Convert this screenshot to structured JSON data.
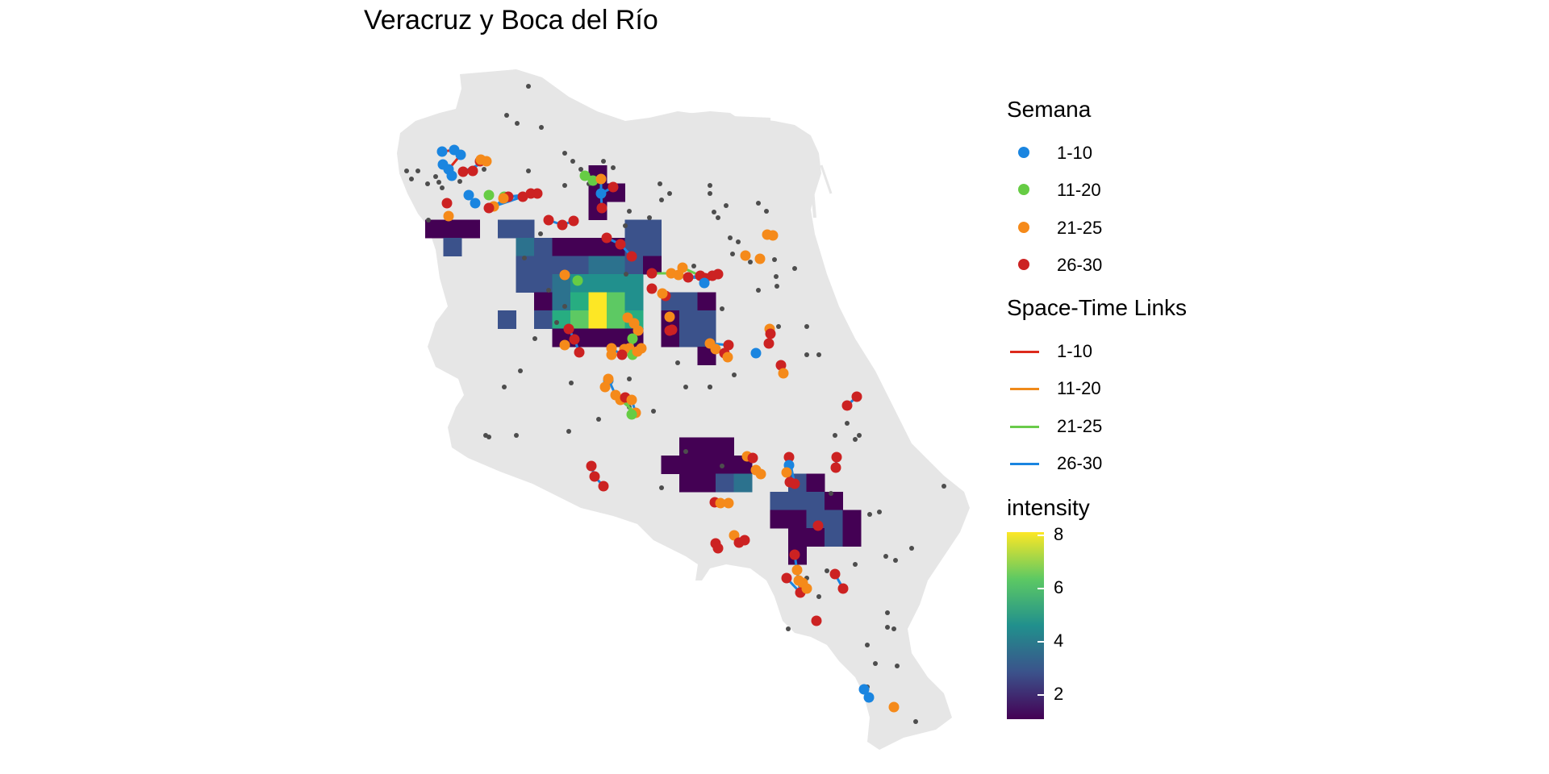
{
  "title": "Veracruz y Boca del Río",
  "colors": {
    "land": "#e6e6e6",
    "week_1_10": "#1a85e0",
    "week_11_20": "#66cc44",
    "week_21_25": "#f58a1a",
    "week_26_30": "#cc2222",
    "link_1_10": "#dd2a1c",
    "link_11_20": "#f08a1a",
    "link_21_25": "#6acb4a",
    "link_26_30": "#1a85e0",
    "sample_point": "#4d4d4d"
  },
  "legend": {
    "semana": {
      "title": "Semana",
      "items": [
        "1-10",
        "11-20",
        "21-25",
        "26-30"
      ]
    },
    "links": {
      "title": "Space-Time Links",
      "items": [
        "1-10",
        "11-20",
        "21-25",
        "26-30"
      ]
    },
    "intensity": {
      "title": "intensity",
      "ticks": [
        "8",
        "6",
        "4",
        "2"
      ],
      "range": [
        1,
        8
      ]
    }
  }
}
